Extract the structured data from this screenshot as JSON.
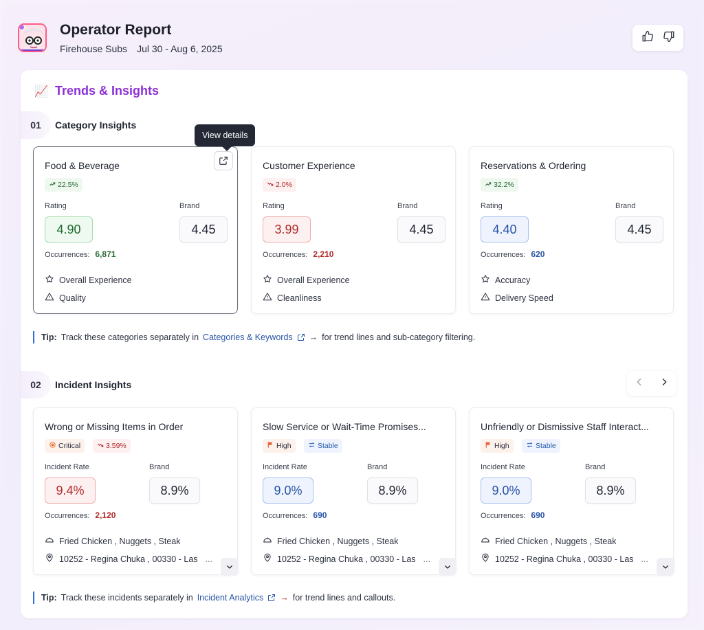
{
  "header": {
    "title": "Operator Report",
    "brand": "Firehouse Subs",
    "date_range": "Jul 30 - Aug 6, 2025",
    "avatar_icon": "glasses-face-icon",
    "feedback": {
      "thumbs_up_icon": "thumbs-up-icon",
      "thumbs_down_icon": "thumbs-down-icon"
    }
  },
  "trends": {
    "emoji": "📈",
    "title": "Trends & Insights"
  },
  "category_insights": {
    "number": "01",
    "title": "Category Insights",
    "tooltip": "View details",
    "cards": [
      {
        "title": "Food & Beverage",
        "trend": "22.5%",
        "trend_dir": "up",
        "rating_label": "Rating",
        "rating": "4.90",
        "rating_color": "green",
        "brand_label": "Brand",
        "brand": "4.45",
        "occ_label": "Occurrences:",
        "occ": "6,871",
        "items": [
          {
            "icon": "star-icon",
            "text": "Overall Experience"
          },
          {
            "icon": "warning-icon",
            "text": "Quality"
          }
        ]
      },
      {
        "title": "Customer Experience",
        "trend": "2.0%",
        "trend_dir": "down",
        "rating_label": "Rating",
        "rating": "3.99",
        "rating_color": "red",
        "brand_label": "Brand",
        "brand": "4.45",
        "occ_label": "Occurrences:",
        "occ": "2,210",
        "items": [
          {
            "icon": "star-icon",
            "text": "Overall Experience"
          },
          {
            "icon": "warning-icon",
            "text": "Cleanliness"
          }
        ]
      },
      {
        "title": "Reservations & Ordering",
        "trend": "32.2%",
        "trend_dir": "up",
        "rating_label": "Rating",
        "rating": "4.40",
        "rating_color": "blue",
        "brand_label": "Brand",
        "brand": "4.45",
        "occ_label": "Occurrences:",
        "occ": "620",
        "items": [
          {
            "icon": "star-icon",
            "text": "Accuracy"
          },
          {
            "icon": "warning-icon",
            "text": "Delivery Speed"
          }
        ]
      }
    ],
    "tip": {
      "label": "Tip:",
      "before": "Track these categories separately in",
      "link": "Categories & Keywords",
      "after": "for trend lines and sub-category filtering."
    }
  },
  "incident_insights": {
    "number": "02",
    "title": "Incident Insights",
    "cards": [
      {
        "title": "Wrong or Missing Items in Order",
        "severity": "Critical",
        "status": "3.59%",
        "status_kind": "down",
        "rate_label": "Incident Rate",
        "rate": "9.4%",
        "rate_color": "red",
        "brand_label": "Brand",
        "brand": "8.9%",
        "occ_label": "Occurrences:",
        "occ": "2,120",
        "items": [
          {
            "icon": "tag-icon",
            "text": "Fried Chicken , Nuggets , Steak"
          },
          {
            "icon": "location-pin-icon",
            "text": "10252 - Regina Chuka , 00330 - Las",
            "more": "..."
          }
        ]
      },
      {
        "title": "Slow Service or Wait-Time Promises...",
        "severity": "High",
        "status": "Stable",
        "status_kind": "stable",
        "rate_label": "Incident Rate",
        "rate": "9.0%",
        "rate_color": "blue",
        "brand_label": "Brand",
        "brand": "8.9%",
        "occ_label": "Occurrences:",
        "occ": "690",
        "items": [
          {
            "icon": "tag-icon",
            "text": "Fried Chicken , Nuggets , Steak"
          },
          {
            "icon": "location-pin-icon",
            "text": "10252 - Regina Chuka , 00330 - Las",
            "more": "..."
          }
        ]
      },
      {
        "title": "Unfriendly or Dismissive Staff Interact...",
        "severity": "High",
        "status": "Stable",
        "status_kind": "stable",
        "rate_label": "Incident Rate",
        "rate": "9.0%",
        "rate_color": "blue",
        "brand_label": "Brand",
        "brand": "8.9%",
        "occ_label": "Occurrences:",
        "occ": "690",
        "items": [
          {
            "icon": "tag-icon",
            "text": "Fried Chicken , Nuggets , Steak"
          },
          {
            "icon": "location-pin-icon",
            "text": "10252 - Regina Chuka , 00330 - Las",
            "more": "..."
          }
        ]
      }
    ],
    "tip": {
      "label": "Tip:",
      "before": "Track these incidents separately in",
      "link": "Incident Analytics",
      "after": "for trend lines and callouts."
    }
  },
  "colors": {
    "accent": "#8b2fd6",
    "link": "#2753a6",
    "green": "#1f6a2c",
    "red": "#b02a2a",
    "blue": "#2753a6"
  }
}
